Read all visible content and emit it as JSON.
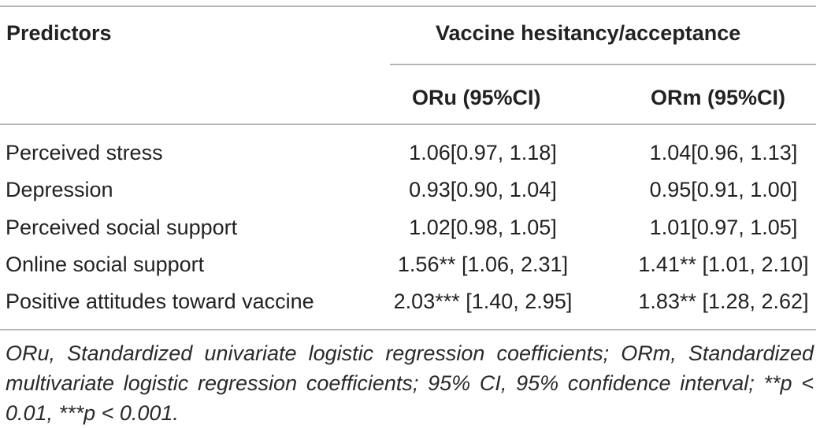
{
  "table": {
    "header": {
      "predictors": "Predictors",
      "group": "Vaccine hesitancy/acceptance",
      "col1": "ORu (95%CI)",
      "col2": "ORm (95%CI)"
    },
    "rows": [
      {
        "label": "Perceived stress",
        "oru": "1.06[0.97, 1.18]",
        "orm": "1.04[0.96, 1.13]"
      },
      {
        "label": "Depression",
        "oru": "0.93[0.90, 1.04]",
        "orm": "0.95[0.91, 1.00]"
      },
      {
        "label": "Perceived social support",
        "oru": "1.02[0.98, 1.05]",
        "orm": "1.01[0.97, 1.05]"
      },
      {
        "label": "Online social support",
        "oru": "1.56** [1.06, 2.31]",
        "orm": "1.41** [1.01, 2.10]"
      },
      {
        "label": "Positive attitudes toward vaccine",
        "oru": "2.03*** [1.40, 2.95]",
        "orm": "1.83** [1.28, 2.62]"
      }
    ],
    "footnote": "ORu, Standardized univariate logistic regression coefficients; ORm, Standardized multivariate logistic regression coefficients; 95% CI, 95% confidence interval; **p < 0.01, ***p < 0.001."
  }
}
